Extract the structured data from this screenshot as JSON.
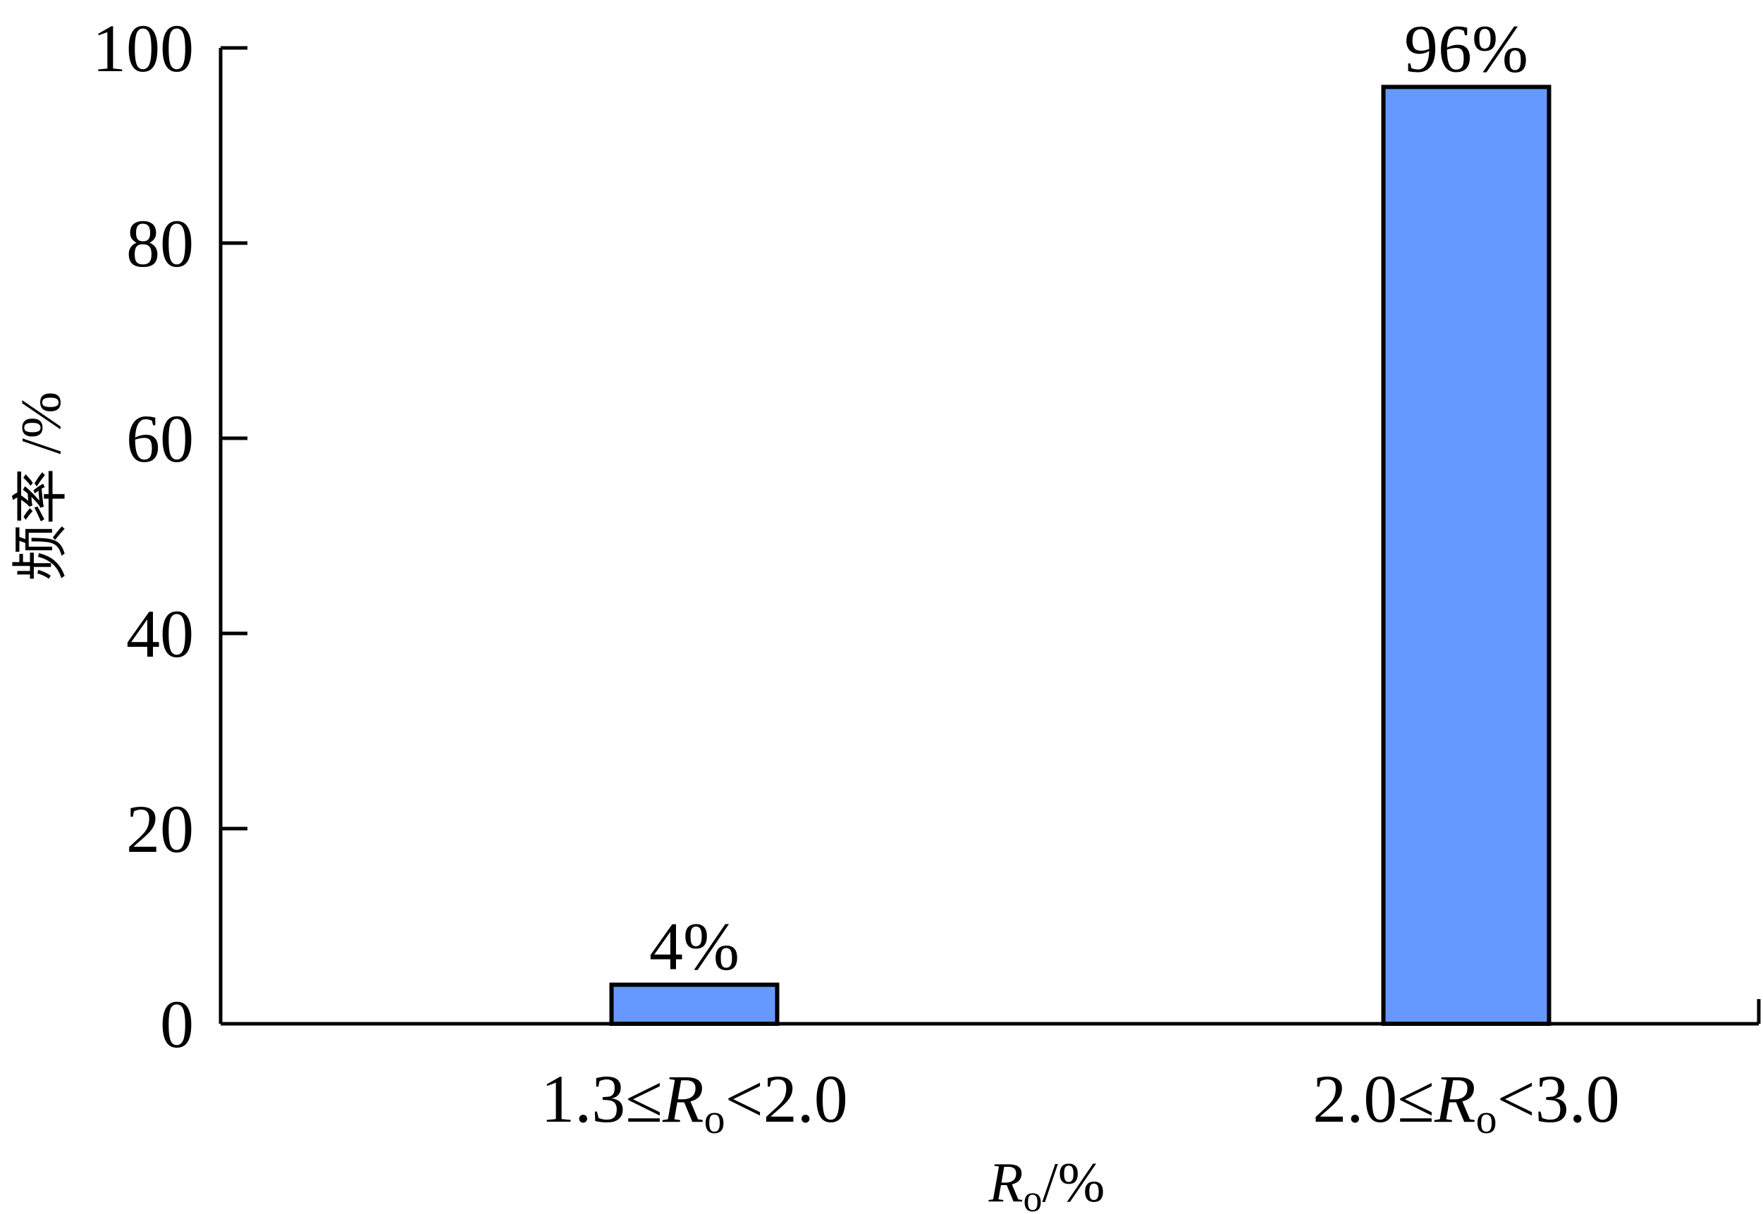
{
  "chart_data": {
    "type": "bar",
    "categories": [
      {
        "pre": "1.3≤",
        "var": "R",
        "sub": "o",
        "post": "<2.0"
      },
      {
        "pre": "2.0≤",
        "var": "R",
        "sub": "o",
        "post": "<3.0"
      }
    ],
    "values": [
      4,
      96
    ],
    "data_labels": [
      "4%",
      "96%"
    ],
    "ylim": [
      0,
      100
    ],
    "yticks": [
      "0",
      "20",
      "40",
      "60",
      "80",
      "100"
    ],
    "xlabel": {
      "var": "R",
      "sub": "o",
      "post": "/%"
    },
    "ylabel": "频率 /%",
    "bar_color": "#6699FF",
    "bar_stroke": "#000000",
    "grid": false
  }
}
